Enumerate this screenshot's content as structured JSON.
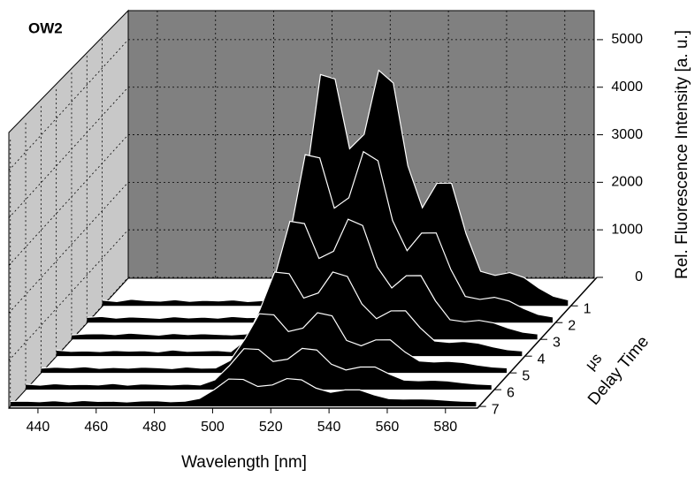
{
  "chart_data": {
    "type": "waterfall3d",
    "title": "OW2",
    "xlabel": "Wavelength [nm]",
    "zlabel": "Rel. Fluorescence Intensity [a. u.]",
    "depth_label": "Delay Time",
    "depth_unit": "μs",
    "x": [
      430,
      435,
      440,
      445,
      450,
      455,
      460,
      465,
      470,
      475,
      480,
      485,
      490,
      495,
      500,
      505,
      510,
      515,
      520,
      525,
      530,
      535,
      540,
      545,
      550,
      555,
      560,
      565,
      570,
      575,
      580,
      585,
      590
    ],
    "series": [
      {
        "delay": 1,
        "color": "#000000",
        "values": [
          120,
          90,
          140,
          110,
          100,
          130,
          95,
          115,
          105,
          125,
          90,
          110,
          100,
          775,
          2630,
          4866,
          4772,
          3305,
          3609,
          4955,
          4689,
          2947,
          2064,
          2577,
          2582,
          1519,
          726,
          640,
          700,
          593,
          375,
          203,
          127
        ]
      },
      {
        "delay": 2,
        "color": "#000000",
        "values": [
          110,
          130,
          95,
          120,
          105,
          90,
          125,
          100,
          115,
          95,
          130,
          105,
          110,
          586,
          1922,
          3532,
          3464,
          2408,
          2626,
          3596,
          3404,
          2150,
          1514,
          1883,
          1887,
          1122,
          551,
          489,
          532,
          455,
          298,
          174,
          119
        ]
      },
      {
        "delay": 3,
        "color": "#000000",
        "values": [
          95,
          115,
          120,
          100,
          130,
          110,
          90,
          125,
          100,
          120,
          105,
          95,
          115,
          438,
          1365,
          2483,
          2436,
          1703,
          1855,
          2528,
          2395,
          1524,
          1082,
          1339,
          1341,
          810,
          413,
          370,
          400,
          347,
          238,
          152,
          114
        ]
      },
      {
        "delay": 4,
        "color": "#000000",
        "values": [
          125,
          100,
          110,
          95,
          120,
          105,
          115,
          90,
          130,
          100,
          110,
          120,
          95,
          336,
          985,
          1768,
          1735,
          1222,
          1328,
          1769,
          1676,
          1096,
          788,
          952,
          954,
          597,
          319,
          289,
          310,
          273,
          196,
          136,
          109
        ]
      },
      {
        "delay": 5,
        "color": "#000000",
        "values": [
          100,
          120,
          105,
          130,
          95,
          115,
          100,
          120,
          110,
          90,
          125,
          100,
          105,
          262,
          707,
          1244,
          1221,
          869,
          942,
          1265,
          1201,
          683,
          571,
          694,
          695,
          441,
          250,
          230,
          243,
          218,
          165,
          125,
          106
        ]
      },
      {
        "delay": 6,
        "color": "#000000",
        "values": [
          115,
          95,
          125,
          105,
          110,
          100,
          130,
          95,
          120,
          110,
          100,
          115,
          100,
          208,
          505,
          863,
          847,
          593,
          641,
          869,
          834,
          536,
          414,
          476,
          477,
          327,
          201,
          188,
          200,
          182,
          145,
          117,
          104
        ]
      },
      {
        "delay": 7,
        "color": "#000000",
        "values": [
          105,
          110,
          100,
          120,
          95,
          125,
          105,
          110,
          95,
          115,
          120,
          100,
          110,
          167,
          353,
          577,
          567,
          420,
          451,
          586,
          559,
          385,
          296,
          348,
          348,
          242,
          163,
          154,
          160,
          149,
          128,
          110,
          103
        ]
      }
    ],
    "xlim": [
      430,
      591
    ],
    "xticks": [
      440,
      460,
      480,
      500,
      520,
      540,
      560,
      580
    ],
    "zlim": [
      0,
      5630
    ],
    "zticks": [
      0,
      1000,
      2000,
      3000,
      4000,
      5000
    ],
    "depthlim": [
      -0.7,
      7.1
    ],
    "depthticks": [
      1,
      2,
      3,
      4,
      5,
      6,
      7
    ],
    "grid": true
  }
}
